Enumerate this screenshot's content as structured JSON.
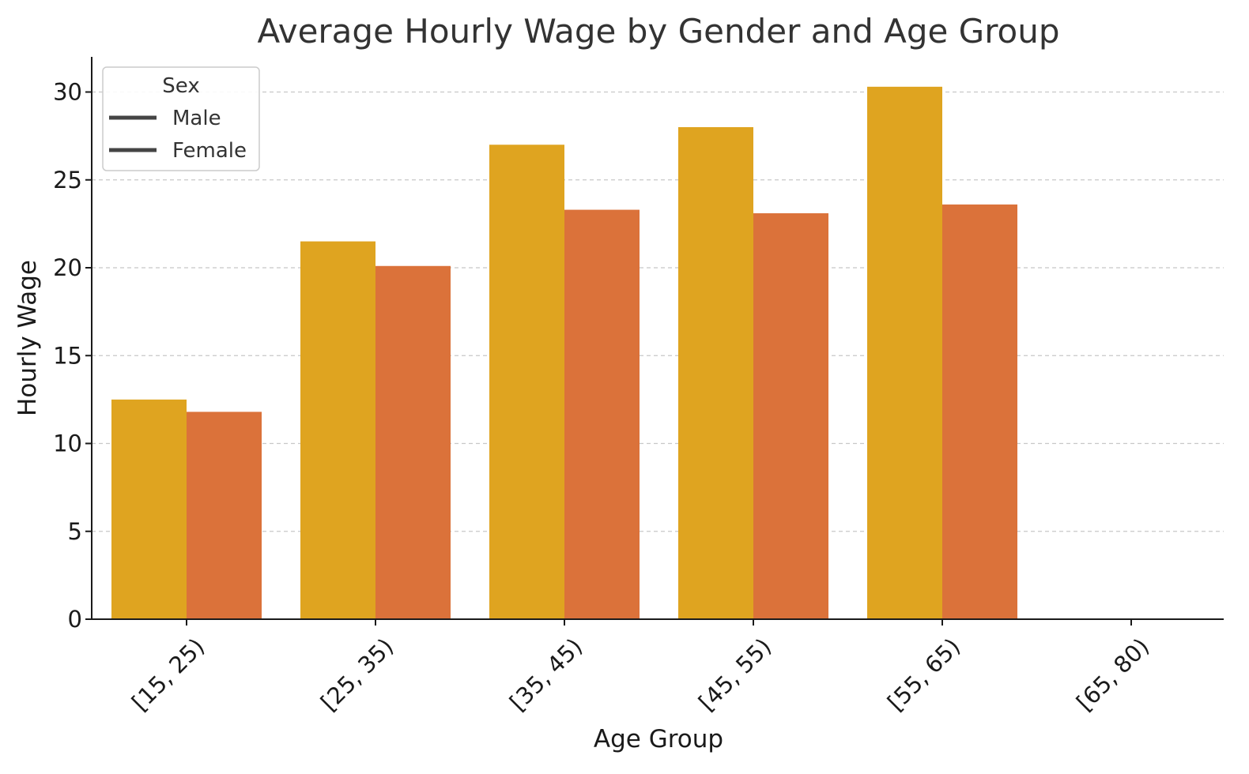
{
  "chart_data": {
    "type": "bar",
    "title": "Average Hourly Wage by Gender and Age Group",
    "xlabel": "Age Group",
    "ylabel": "Hourly Wage",
    "categories": [
      "[15, 25)",
      "[25, 35)",
      "[35, 45)",
      "[45, 55)",
      "[55, 65)",
      "[65, 80)"
    ],
    "series": [
      {
        "name": "Male",
        "color": "#DFA420",
        "values": [
          12.5,
          21.5,
          27.0,
          28.0,
          30.3,
          null
        ]
      },
      {
        "name": "Female",
        "color": "#DB723A",
        "values": [
          11.8,
          20.1,
          23.3,
          23.1,
          23.6,
          null
        ]
      }
    ],
    "ylim": [
      0,
      32
    ],
    "yticks": [
      0,
      5,
      10,
      15,
      20,
      25,
      30
    ],
    "grid": "y-dashed",
    "legend": {
      "title": "Sex",
      "placement": "top-left",
      "handle_color": "#444444"
    }
  }
}
